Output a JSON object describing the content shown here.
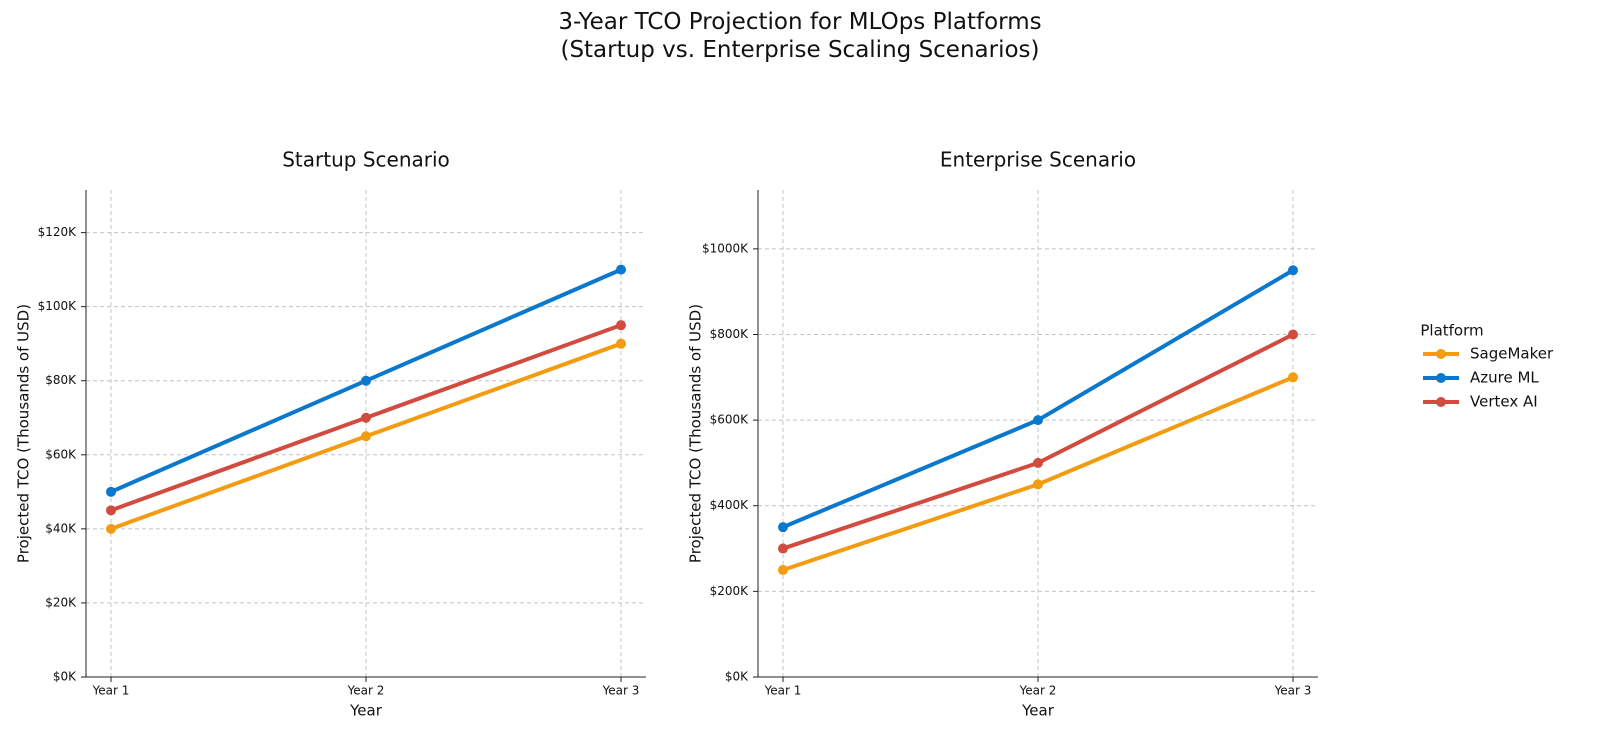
{
  "title": "3-Year TCO Projection for MLOps Platforms\n(Startup vs. Enterprise Scaling Scenarios)",
  "legend_title": "Platform",
  "chart_data": [
    {
      "type": "line",
      "title": "Startup Scenario",
      "xlabel": "Year",
      "ylabel": "Projected TCO (Thousands of USD)",
      "categories": [
        "Year 1",
        "Year 2",
        "Year 3"
      ],
      "series": [
        {
          "name": "SageMaker",
          "color": "#f39c12",
          "values": [
            40,
            65,
            90
          ]
        },
        {
          "name": "Azure ML",
          "color": "#0a78cc",
          "values": [
            50,
            80,
            110
          ]
        },
        {
          "name": "Vertex AI",
          "color": "#d14b3f",
          "values": [
            45,
            70,
            95
          ]
        }
      ],
      "ylim": [
        0,
        131.5
      ],
      "yticks": [
        {
          "value": 0,
          "label": "$0K"
        },
        {
          "value": 20,
          "label": "$20K"
        },
        {
          "value": 40,
          "label": "$40K"
        },
        {
          "value": 60,
          "label": "$60K"
        },
        {
          "value": 80,
          "label": "$80K"
        },
        {
          "value": 100,
          "label": "$100K"
        },
        {
          "value": 120,
          "label": "$120K"
        }
      ],
      "grid": true
    },
    {
      "type": "line",
      "title": "Enterprise Scenario",
      "xlabel": "Year",
      "ylabel": "Projected TCO (Thousands of USD)",
      "categories": [
        "Year 1",
        "Year 2",
        "Year 3"
      ],
      "series": [
        {
          "name": "SageMaker",
          "color": "#f39c12",
          "values": [
            250,
            450,
            700
          ]
        },
        {
          "name": "Azure ML",
          "color": "#0a78cc",
          "values": [
            350,
            600,
            950
          ]
        },
        {
          "name": "Vertex AI",
          "color": "#d14b3f",
          "values": [
            300,
            500,
            800
          ]
        }
      ],
      "ylim": [
        0,
        1137.5
      ],
      "yticks": [
        {
          "value": 0,
          "label": "$0K"
        },
        {
          "value": 200,
          "label": "$200K"
        },
        {
          "value": 400,
          "label": "$400K"
        },
        {
          "value": 600,
          "label": "$600K"
        },
        {
          "value": 800,
          "label": "$800K"
        },
        {
          "value": 1000,
          "label": "$1000K"
        }
      ],
      "grid": true
    }
  ]
}
